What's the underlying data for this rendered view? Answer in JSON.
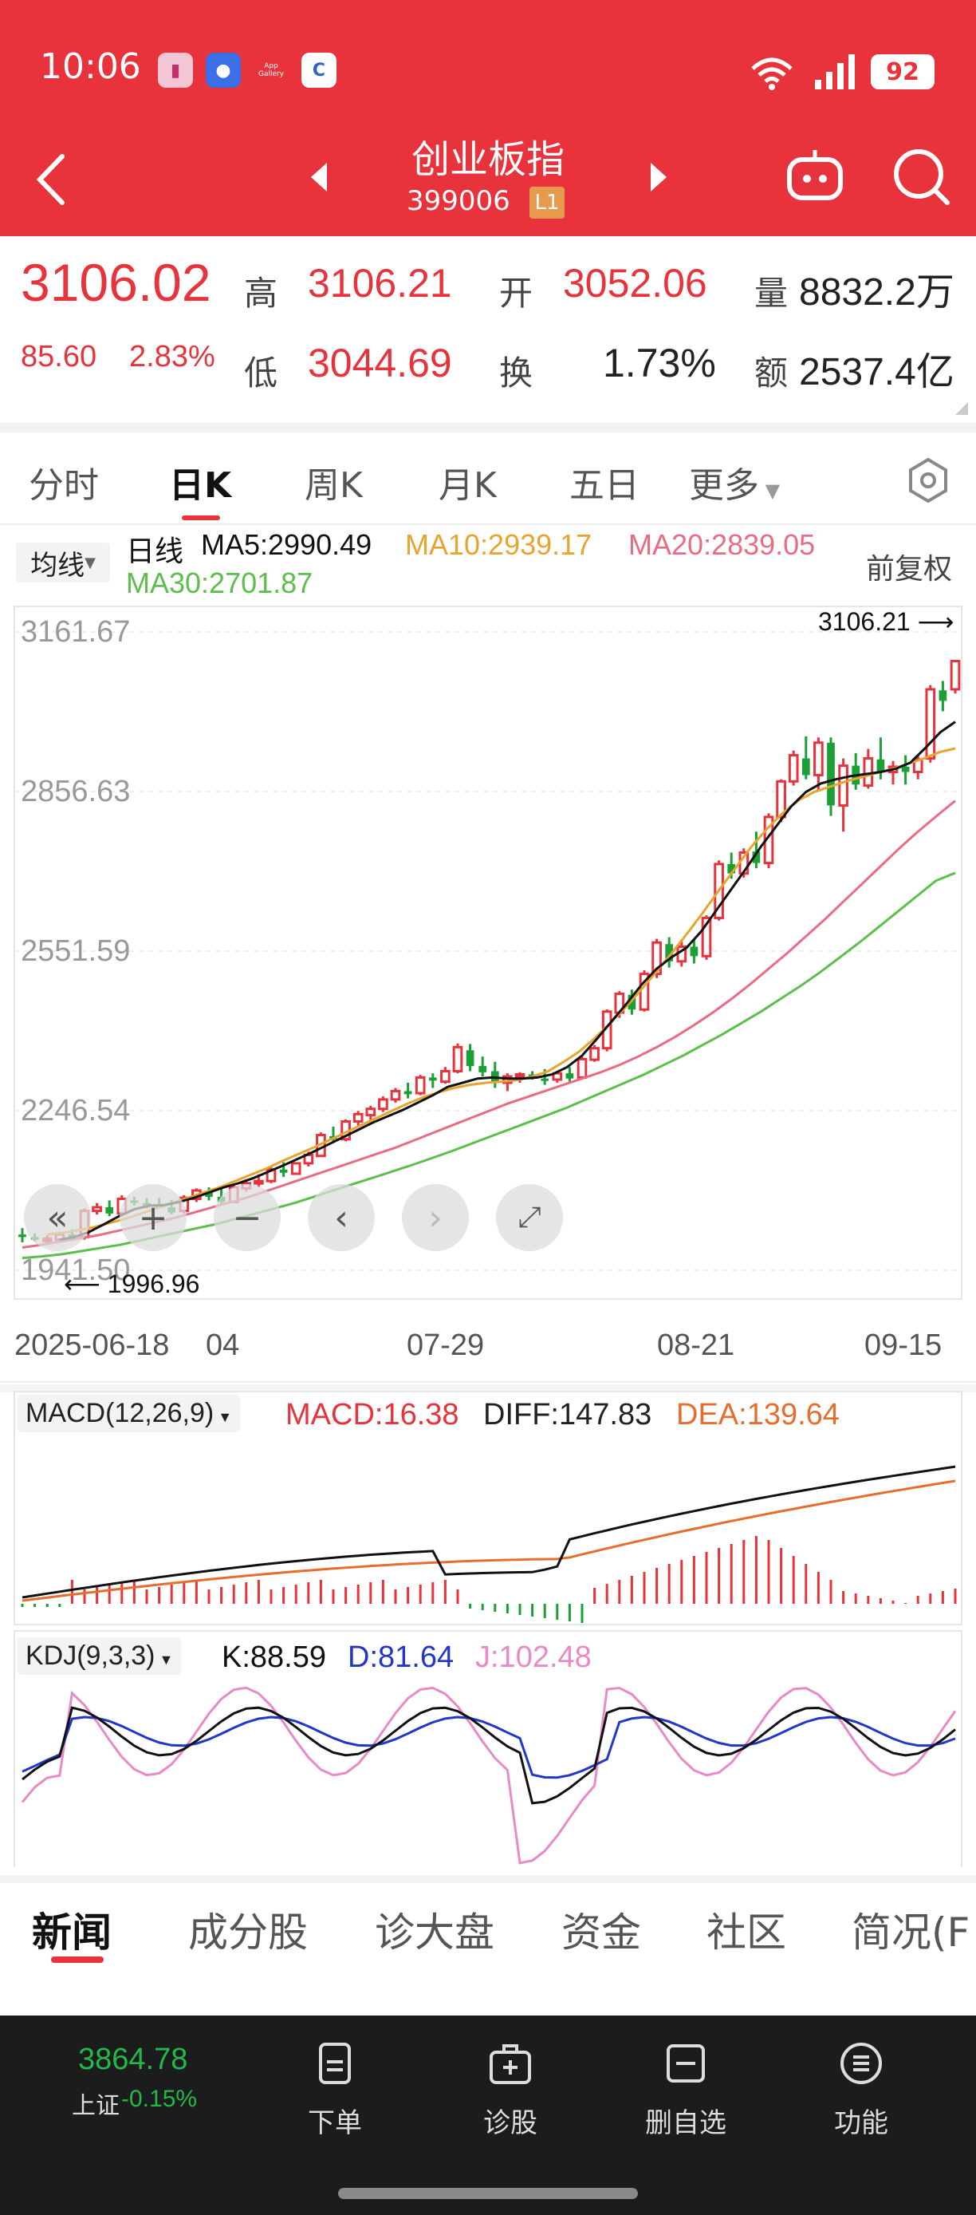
{
  "status_bar": {
    "time": "10:06",
    "battery": "92",
    "app_icons": [
      "app-icon-1",
      "chat-icon",
      "app-gallery-icon",
      "bank-icon"
    ],
    "app_gallery_label": "App\nGallery"
  },
  "nav": {
    "title": "创业板指",
    "code": "399006",
    "badge": "L1"
  },
  "quote": {
    "price": "3106.02",
    "change": "85.60",
    "change_pct": "2.83%",
    "high_label": "高",
    "high": "3106.21",
    "low_label": "低",
    "low": "3044.69",
    "open_label": "开",
    "open": "3052.06",
    "turnover_label": "换",
    "turnover": "1.73%",
    "volume_label": "量",
    "volume": "8832.2万",
    "amount_label": "额",
    "amount": "2537.4亿"
  },
  "tabs": [
    "分时",
    "日K",
    "周K",
    "月K",
    "五日",
    "更多"
  ],
  "active_tab": "日K",
  "ma": {
    "button": "均线",
    "type": "日线",
    "ma5": "MA5:2990.49",
    "ma10": "MA10:2939.17",
    "ma20": "MA20:2839.05",
    "ma30": "MA30:2701.87",
    "adjust": "前复权"
  },
  "colors": {
    "up": "#e8333c",
    "down": "#1aa034",
    "ma5": "#111111",
    "ma10": "#e8a42c",
    "ma20": "#e86d83",
    "ma30": "#5cbf4c"
  },
  "chart_data": {
    "type": "candlestick",
    "y_ticks": [
      "3161.67",
      "2856.63",
      "2551.59",
      "2246.54",
      "1941.50"
    ],
    "x_ticks": [
      "2025-06-18",
      "04",
      "07-29",
      "08-21",
      "09-15"
    ],
    "ylim": [
      1941.5,
      3161.67
    ],
    "max_label": "3106.21",
    "min_label": "1996.96",
    "ohlc": [
      [
        2010,
        2022,
        1995,
        2005
      ],
      [
        2005,
        2012,
        1997,
        2000
      ],
      [
        1998,
        2008,
        1990,
        2002
      ],
      [
        2000,
        2015,
        1997,
        2010
      ],
      [
        2010,
        2020,
        1998,
        2002
      ],
      [
        2005,
        2060,
        2000,
        2055
      ],
      [
        2055,
        2070,
        2048,
        2062
      ],
      [
        2062,
        2075,
        2045,
        2050
      ],
      [
        2050,
        2085,
        2045,
        2078
      ],
      [
        2075,
        2082,
        2065,
        2072
      ],
      [
        2070,
        2080,
        2060,
        2065
      ],
      [
        2065,
        2080,
        2060,
        2062
      ],
      [
        2062,
        2076,
        2048,
        2052
      ],
      [
        2055,
        2085,
        2050,
        2080
      ],
      [
        2078,
        2098,
        2072,
        2094
      ],
      [
        2094,
        2100,
        2075,
        2082
      ],
      [
        2082,
        2098,
        2068,
        2072
      ],
      [
        2072,
        2105,
        2070,
        2100
      ],
      [
        2098,
        2115,
        2092,
        2108
      ],
      [
        2108,
        2125,
        2100,
        2112
      ],
      [
        2112,
        2140,
        2108,
        2134
      ],
      [
        2134,
        2148,
        2120,
        2128
      ],
      [
        2126,
        2148,
        2124,
        2146
      ],
      [
        2146,
        2168,
        2140,
        2162
      ],
      [
        2160,
        2205,
        2158,
        2200
      ],
      [
        2198,
        2216,
        2186,
        2192
      ],
      [
        2192,
        2230,
        2188,
        2226
      ],
      [
        2226,
        2246,
        2218,
        2240
      ],
      [
        2238,
        2256,
        2228,
        2250
      ],
      [
        2250,
        2274,
        2244,
        2268
      ],
      [
        2268,
        2290,
        2262,
        2284
      ],
      [
        2284,
        2300,
        2270,
        2278
      ],
      [
        2280,
        2315,
        2276,
        2310
      ],
      [
        2310,
        2318,
        2290,
        2304
      ],
      [
        2302,
        2330,
        2298,
        2322
      ],
      [
        2322,
        2375,
        2318,
        2368
      ],
      [
        2362,
        2374,
        2322,
        2332
      ],
      [
        2332,
        2350,
        2312,
        2320
      ],
      [
        2322,
        2340,
        2290,
        2300
      ],
      [
        2300,
        2318,
        2284,
        2312
      ],
      [
        2312,
        2320,
        2300,
        2316
      ],
      [
        2316,
        2322,
        2306,
        2310
      ],
      [
        2308,
        2326,
        2296,
        2306
      ],
      [
        2306,
        2320,
        2300,
        2318
      ],
      [
        2318,
        2330,
        2300,
        2308
      ],
      [
        2310,
        2350,
        2306,
        2345
      ],
      [
        2344,
        2372,
        2340,
        2366
      ],
      [
        2366,
        2440,
        2360,
        2436
      ],
      [
        2434,
        2475,
        2424,
        2470
      ],
      [
        2468,
        2478,
        2430,
        2440
      ],
      [
        2440,
        2515,
        2436,
        2508
      ],
      [
        2508,
        2575,
        2500,
        2568
      ],
      [
        2565,
        2578,
        2520,
        2532
      ],
      [
        2532,
        2570,
        2522,
        2560
      ],
      [
        2560,
        2575,
        2528,
        2542
      ],
      [
        2542,
        2620,
        2535,
        2615
      ],
      [
        2615,
        2725,
        2610,
        2718
      ],
      [
        2718,
        2740,
        2690,
        2700
      ],
      [
        2700,
        2748,
        2692,
        2740
      ],
      [
        2742,
        2780,
        2710,
        2720
      ],
      [
        2720,
        2815,
        2710,
        2808
      ],
      [
        2808,
        2880,
        2798,
        2876
      ],
      [
        2876,
        2935,
        2868,
        2926
      ],
      [
        2920,
        2962,
        2880,
        2888
      ],
      [
        2888,
        2960,
        2860,
        2950
      ],
      [
        2950,
        2960,
        2810,
        2830
      ],
      [
        2830,
        2920,
        2780,
        2906
      ],
      [
        2906,
        2930,
        2860,
        2870
      ],
      [
        2868,
        2938,
        2862,
        2920
      ],
      [
        2918,
        2960,
        2880,
        2894
      ],
      [
        2894,
        2915,
        2870,
        2904
      ],
      [
        2904,
        2926,
        2870,
        2894
      ],
      [
        2894,
        2925,
        2880,
        2918
      ],
      [
        2920,
        3060,
        2912,
        3052
      ],
      [
        3050,
        3068,
        3010,
        3030
      ],
      [
        3052,
        3106,
        3044,
        3106
      ]
    ],
    "ma5": [
      2000,
      2005,
      2015,
      2030,
      2045,
      2058,
      2065,
      2066,
      2072,
      2080,
      2090,
      2100,
      2108,
      2118,
      2130,
      2142,
      2155,
      2168,
      2182,
      2196,
      2210,
      2224,
      2236,
      2248,
      2262,
      2276,
      2292,
      2300,
      2308,
      2310,
      2308,
      2308,
      2310,
      2316,
      2330,
      2352,
      2384,
      2418,
      2452,
      2488,
      2518,
      2540,
      2558,
      2590,
      2630,
      2670,
      2710,
      2752,
      2790,
      2828,
      2856,
      2872,
      2880,
      2886,
      2890,
      2894,
      2900,
      2912,
      2940,
      2970,
      2990
    ],
    "ma10": [
      2010,
      2013,
      2018,
      2024,
      2032,
      2040,
      2050,
      2060,
      2070,
      2080,
      2090,
      2100,
      2112,
      2124,
      2136,
      2150,
      2163,
      2176,
      2190,
      2204,
      2218,
      2232,
      2246,
      2260,
      2272,
      2282,
      2290,
      2296,
      2300,
      2302,
      2305,
      2312,
      2322,
      2340,
      2360,
      2386,
      2415,
      2446,
      2480,
      2515,
      2552,
      2590,
      2630,
      2672,
      2712,
      2752,
      2786,
      2816,
      2840,
      2856,
      2866,
      2876,
      2884,
      2892,
      2900,
      2910,
      2920,
      2932,
      2939
    ],
    "ma20": [
      1985,
      1990,
      1996,
      2002,
      2008,
      2016,
      2024,
      2032,
      2040,
      2050,
      2060,
      2070,
      2080,
      2092,
      2104,
      2116,
      2128,
      2140,
      2152,
      2164,
      2176,
      2190,
      2204,
      2218,
      2232,
      2246,
      2260,
      2272,
      2284,
      2296,
      2308,
      2320,
      2334,
      2350,
      2368,
      2388,
      2410,
      2434,
      2460,
      2488,
      2518,
      2548,
      2580,
      2612,
      2646,
      2680,
      2714,
      2748,
      2780,
      2810,
      2839
    ],
    "ma30": [
      1965,
      1968,
      1972,
      1978,
      1984,
      1990,
      1998,
      2006,
      2014,
      2022,
      2030,
      2040,
      2050,
      2060,
      2070,
      2082,
      2094,
      2106,
      2118,
      2130,
      2142,
      2155,
      2168,
      2182,
      2196,
      2210,
      2224,
      2238,
      2252,
      2268,
      2284,
      2300,
      2316,
      2334,
      2352,
      2372,
      2392,
      2414,
      2436,
      2460,
      2484,
      2510,
      2538,
      2566,
      2596,
      2626,
      2656,
      2686,
      2701
    ]
  },
  "macd": {
    "label": "MACD(12,26,9)",
    "macd": "MACD:16.38",
    "diff": "DIFF:147.83",
    "dea": "DEA:139.64"
  },
  "kdj": {
    "label": "KDJ(9,3,3)",
    "k": "K:88.59",
    "d": "D:81.64",
    "j": "J:102.48"
  },
  "news_tabs": [
    "新闻",
    "成分股",
    "诊大盘",
    "资金",
    "社区",
    "简况(F"
  ],
  "bottom_bar": {
    "index_value": "3864.78",
    "index_name": "上证",
    "index_change": "-0.15%",
    "items": [
      "下单",
      "诊股",
      "删自选",
      "功能"
    ]
  }
}
